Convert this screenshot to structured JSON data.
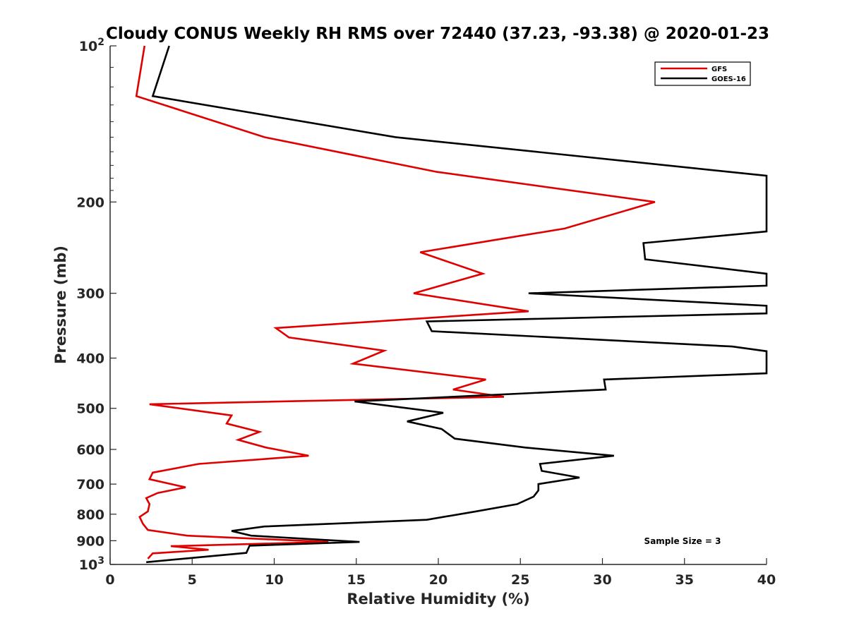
{
  "chart_data": {
    "type": "line",
    "title": "Cloudy CONUS Weekly RH RMS over 72440 (37.23, -93.38) @ 2020-01-23",
    "xlabel": "Relative Humidity (%)",
    "ylabel": "Pressure (mb)",
    "xlim": [
      0,
      40
    ],
    "ylim": [
      100,
      1000
    ],
    "y_scale": "log",
    "y_reversed": true,
    "grid": false,
    "legend_position": "top-right",
    "x_ticks": [
      0,
      5,
      10,
      15,
      20,
      25,
      30,
      35,
      40
    ],
    "y_ticks": [
      {
        "value": 100,
        "label": "10",
        "sup": "2"
      },
      {
        "value": 200,
        "label": "200"
      },
      {
        "value": 300,
        "label": "300"
      },
      {
        "value": 400,
        "label": "400"
      },
      {
        "value": 500,
        "label": "500"
      },
      {
        "value": 600,
        "label": "600"
      },
      {
        "value": 700,
        "label": "700"
      },
      {
        "value": 800,
        "label": "800"
      },
      {
        "value": 900,
        "label": "900"
      },
      {
        "value": 1000,
        "label": "10",
        "sup": "3"
      }
    ],
    "annotation": "Sample Size = 3",
    "series": [
      {
        "name": "GFS",
        "color": "#e00000",
        "points": [
          [
            2.1,
            100
          ],
          [
            1.6,
            125
          ],
          [
            9.4,
            150
          ],
          [
            19.9,
            175
          ],
          [
            33.2,
            200
          ],
          [
            27.7,
            225
          ],
          [
            18.9,
            250
          ],
          [
            22.7,
            275
          ],
          [
            18.5,
            300
          ],
          [
            25.5,
            325
          ],
          [
            10.1,
            350
          ],
          [
            10.9,
            365
          ],
          [
            16.7,
            387
          ],
          [
            14.8,
            410
          ],
          [
            22.9,
            440
          ],
          [
            20.9,
            460
          ],
          [
            24.0,
            475
          ],
          [
            2.4,
            491
          ],
          [
            7.4,
            516
          ],
          [
            7.1,
            535
          ],
          [
            9.1,
            555
          ],
          [
            7.8,
            575
          ],
          [
            9.5,
            595
          ],
          [
            12.1,
            617
          ],
          [
            5.4,
            640
          ],
          [
            2.6,
            665
          ],
          [
            2.4,
            685
          ],
          [
            4.6,
            710
          ],
          [
            2.9,
            728
          ],
          [
            2.2,
            745
          ],
          [
            2.4,
            765
          ],
          [
            2.3,
            790
          ],
          [
            1.8,
            810
          ],
          [
            2.0,
            835
          ],
          [
            2.3,
            858
          ],
          [
            4.7,
            880
          ],
          [
            13.3,
            905
          ],
          [
            3.7,
            922
          ],
          [
            6.0,
            937
          ],
          [
            2.6,
            952
          ],
          [
            2.3,
            975
          ]
        ]
      },
      {
        "name": "GOES-16",
        "color": "#000000",
        "points": [
          [
            3.6,
            100
          ],
          [
            2.6,
            125
          ],
          [
            17.4,
            150
          ],
          [
            40,
            178
          ],
          [
            40,
            228
          ],
          [
            32.5,
            240
          ],
          [
            32.6,
            258
          ],
          [
            40,
            275
          ],
          [
            40,
            290
          ],
          [
            25.5,
            300
          ],
          [
            40,
            317
          ],
          [
            40,
            328
          ],
          [
            19.3,
            340
          ],
          [
            19.6,
            355
          ],
          [
            37.9,
            380
          ],
          [
            40,
            388
          ],
          [
            40,
            428
          ],
          [
            30.1,
            440
          ],
          [
            30.2,
            460
          ],
          [
            14.9,
            485
          ],
          [
            20.3,
            510
          ],
          [
            18.1,
            530
          ],
          [
            20.2,
            548
          ],
          [
            21.0,
            572
          ],
          [
            25.3,
            595
          ],
          [
            30.7,
            617
          ],
          [
            26.2,
            640
          ],
          [
            26.3,
            660
          ],
          [
            28.6,
            680
          ],
          [
            26.1,
            700
          ],
          [
            26.1,
            720
          ],
          [
            25.8,
            740
          ],
          [
            24.8,
            765
          ],
          [
            22.3,
            790
          ],
          [
            19.3,
            820
          ],
          [
            9.4,
            845
          ],
          [
            7.4,
            862
          ],
          [
            8.6,
            880
          ],
          [
            15.2,
            905
          ],
          [
            8.5,
            920
          ],
          [
            8.3,
            950
          ],
          [
            2.2,
            990
          ]
        ]
      }
    ]
  }
}
